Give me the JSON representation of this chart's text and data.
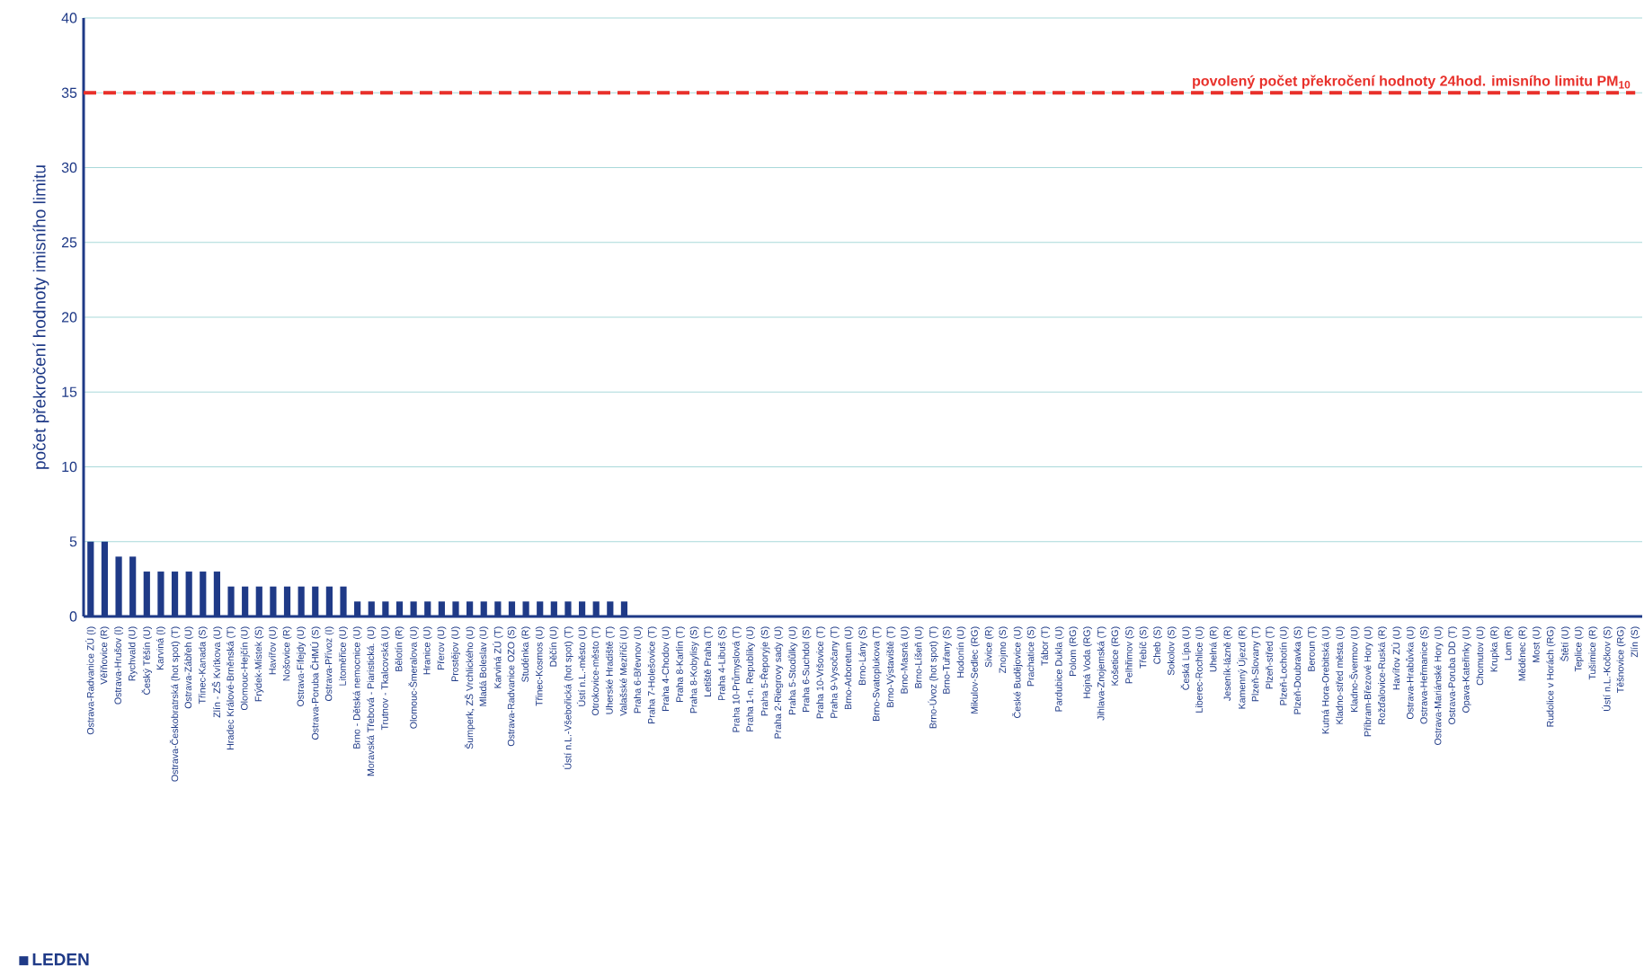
{
  "chart_data": {
    "type": "bar",
    "ylabel": "počet překročení hodnoty imisního limitu",
    "categories": [
      "Ostrava-Radvanice ZÚ (I)",
      "Věřňovice (R)",
      "Ostrava-Hrušov (I)",
      "Rychvald (U)",
      "Český Těšín (U)",
      "Karviná (I)",
      "Ostrava-Českobratrská (hot spot) (T)",
      "Ostrava-Zábřeh (U)",
      "Třinec-Kanada (S)",
      "Zlín - ZŠ Kvítkova (U)",
      "Hradec Králové-Brněnská (T)",
      "Olomouc-Hejčín (U)",
      "Frýdek-Místek (S)",
      "Havířov (U)",
      "Nošovice (R)",
      "Ostrava-Fifejdy (U)",
      "Ostrava-Poruba ČHMÚ (S)",
      "Ostrava-Přívoz (I)",
      "Litoměřice (U)",
      "Brno - Dětská nemocnice (U)",
      "Moravská Třebová - Piaristická. (U)",
      "Trutnov - Tkalcovská (U)",
      "Bělotín (R)",
      "Olomouc-Šmeralova (U)",
      "Hranice (U)",
      "Přerov (U)",
      "Prostějov (U)",
      "Šumperk, ZŠ Vrchlického (U)",
      "Mladá Boleslav (U)",
      "Karviná ZÚ (T)",
      "Ostrava-Radvanice OZO (S)",
      "Studénka (R)",
      "Třinec-Kosmos (U)",
      "Děčín (U)",
      "Ústí n.L.-Všebořická (hot spot) (T)",
      "Ústí n.L.-město (U)",
      "Otrokovice-město (T)",
      "Uherské Hradiště (T)",
      "Valašské Meziříčí (U)",
      "Praha 6-Břevnov (U)",
      "Praha 7-Holešovice (T)",
      "Praha 4-Chodov (U)",
      "Praha 8-Karlín (T)",
      "Praha 8-Kobylisy (S)",
      "Letiště Praha (T)",
      "Praha 4-Libuš (S)",
      "Praha 10-Průmyslová (T)",
      "Praha 1-n. Republiky (U)",
      "Praha 5-Řeporyje (S)",
      "Praha 2-Riegrovy sady (U)",
      "Praha 5-Stodůlky (U)",
      "Praha 6-Suchdol (S)",
      "Praha 10-Vršovice (T)",
      "Praha 9-Vysočany (T)",
      "Brno-Arboretum (U)",
      "Brno-Lány (S)",
      "Brno-Svatoplukova (T)",
      "Brno-Výstaviště (T)",
      "Brno-Masná (U)",
      "Brno-Líšeň (U)",
      "Brno-Úvoz (hot spot) (T)",
      "Brno-Tuřany (S)",
      "Hodonín (U)",
      "Mikulov-Sedlec (RG)",
      "Sivice (R)",
      "Znojmo (S)",
      "České Budějovice (U)",
      "Prachatice (S)",
      "Tábor (T)",
      "Pardubice Dukla (U)",
      "Polom (RG)",
      "Hojná Voda (RG)",
      "Jihlava-Znojemská (T)",
      "Košetice (RG)",
      "Pelhřimov (S)",
      "Třebíč (S)",
      "Cheb (S)",
      "Sokolov (S)",
      "Česká Lípa (U)",
      "Liberec-Rochlice (U)",
      "Uhelná (R)",
      "Jeseník-lázně (R)",
      "Kamenný Újezd (R)",
      "Plzeň-Slovany (T)",
      "Plzeň-střed (T)",
      "Plzeň-Lochotín (U)",
      "Plzeň-Doubravka (S)",
      "Beroun (T)",
      "Kutná Hora-Orebitská (U)",
      "Kladno-střed města (U)",
      "Kladno-Švermov (U)",
      "Příbram-Březové Hory (U)",
      "Rožďalovice-Ruská (R)",
      "Havířov ZÚ (U)",
      "Ostrava-Hrabůvka (U)",
      "Ostrava-Heřmanice (S)",
      "Ostrava-Mariánské Hory (U)",
      "Ostrava-Poruba DD (T)",
      "Opava-Kateřinky (U)",
      "Chomutov (U)",
      "Krupka (R)",
      "Lom (R)",
      "Měděnec (R)",
      "Most (U)",
      "Rudolice v Horách (RG)",
      "Štětí (U)",
      "Teplice (U)",
      "Tušimice (R)",
      "Ústí n.L.-Kočkov (S)",
      "Těšnovice (RG)",
      "Zlín (S)"
    ],
    "series": [
      {
        "name": "LEDEN",
        "color": "#1f3a87",
        "values": [
          5,
          5,
          4,
          4,
          3,
          3,
          3,
          3,
          3,
          3,
          2,
          2,
          2,
          2,
          2,
          2,
          2,
          2,
          2,
          1,
          1,
          1,
          1,
          1,
          1,
          1,
          1,
          1,
          1,
          1,
          1,
          1,
          1,
          1,
          1,
          1,
          1,
          1,
          1,
          0,
          0,
          0,
          0,
          0,
          0,
          0,
          0,
          0,
          0,
          0,
          0,
          0,
          0,
          0,
          0,
          0,
          0,
          0,
          0,
          0,
          0,
          0,
          0,
          0,
          0,
          0,
          0,
          0,
          0,
          0,
          0,
          0,
          0,
          0,
          0,
          0,
          0,
          0,
          0,
          0,
          0,
          0,
          0,
          0,
          0,
          0,
          0,
          0,
          0,
          0,
          0,
          0,
          0,
          0,
          0,
          0,
          0,
          0,
          0,
          0,
          0,
          0,
          0,
          0,
          0,
          0,
          0,
          0,
          0,
          0,
          0
        ]
      }
    ],
    "ylim": [
      0,
      40
    ],
    "yticks": [
      0,
      5,
      10,
      15,
      20,
      25,
      30,
      35,
      40
    ],
    "grid": "y",
    "legend": "bottom left",
    "ref_lines": [
      {
        "axis": "y",
        "value": 35,
        "label": "povolený počet překročení hodnoty 24hod. imisního limitu PM$_{10}$",
        "color": "#e8302a",
        "line_style": "dashed"
      }
    ]
  }
}
